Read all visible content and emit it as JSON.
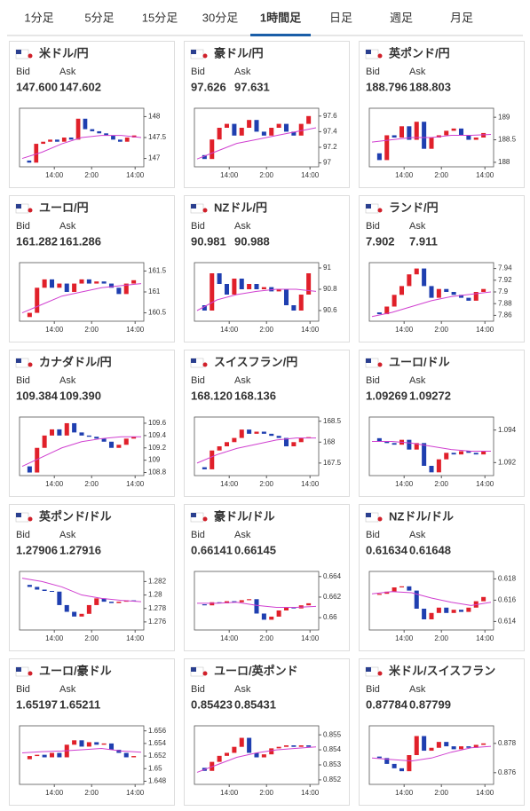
{
  "tabs": [
    "1分足",
    "5分足",
    "15分足",
    "30分足",
    "1時間足",
    "日足",
    "週足",
    "月足"
  ],
  "active_tab": 4,
  "bid_label": "Bid",
  "ask_label": "Ask",
  "time_labels": [
    "14:00",
    "2:00",
    "14:00"
  ],
  "cards": [
    {
      "title": "米ドル/円",
      "title_color": "#5a2a8a",
      "bid": "147.600",
      "ask": "147.602",
      "chart": {
        "ylim": [
          146.8,
          148.2
        ],
        "yticks": [
          147,
          147.5,
          148
        ],
        "close": [
          146.95,
          146.9,
          147.35,
          147.4,
          147.45,
          147.4,
          147.5,
          147.45,
          147.95,
          147.7,
          147.65,
          147.6,
          147.55,
          147.45,
          147.4,
          147.5,
          147.55
        ],
        "ma": [
          147.0,
          147.15,
          147.35,
          147.5,
          147.55,
          147.55,
          147.5
        ]
      }
    },
    {
      "title": "豪ドル/円",
      "title_color": "#5a2a8a",
      "bid": "97.626",
      "ask": "97.631",
      "chart": {
        "ylim": [
          96.95,
          97.7
        ],
        "yticks": [
          97,
          97.2,
          97.4,
          97.6
        ],
        "close": [
          97.1,
          97.05,
          97.3,
          97.45,
          97.5,
          97.35,
          97.45,
          97.55,
          97.4,
          97.35,
          97.45,
          97.5,
          97.4,
          97.35,
          97.5,
          97.6
        ],
        "ma": [
          97.05,
          97.15,
          97.25,
          97.3,
          97.35,
          97.4,
          97.45
        ]
      }
    },
    {
      "title": "英ポンド/円",
      "title_color": "#5a2a8a",
      "bid": "188.796",
      "ask": "188.803",
      "chart": {
        "ylim": [
          187.9,
          189.2
        ],
        "yticks": [
          188,
          188.5,
          189
        ],
        "close": [
          188.2,
          188.05,
          188.6,
          188.55,
          188.8,
          188.5,
          188.9,
          188.3,
          188.55,
          188.6,
          188.7,
          188.75,
          188.6,
          188.5,
          188.55,
          188.65
        ],
        "ma": [
          188.45,
          188.5,
          188.55,
          188.55,
          188.6,
          188.6,
          188.62
        ]
      }
    },
    {
      "title": "ユーロ/円",
      "title_color": "#5a2a8a",
      "bid": "161.282",
      "ask": "161.286",
      "chart": {
        "ylim": [
          160.3,
          161.7
        ],
        "yticks": [
          160.5,
          161,
          161.5
        ],
        "close": [
          160.4,
          160.5,
          161.1,
          161.3,
          161.1,
          161.2,
          161.0,
          161.2,
          161.3,
          161.2,
          161.25,
          161.2,
          161.1,
          160.95,
          161.2,
          161.28
        ],
        "ma": [
          160.5,
          160.7,
          160.9,
          161.0,
          161.1,
          161.15,
          161.2
        ]
      }
    },
    {
      "title": "NZドル/円",
      "title_color": "#5a2a8a",
      "bid": "90.981",
      "ask": "90.988",
      "chart": {
        "ylim": [
          90.5,
          91.05
        ],
        "yticks": [
          90.6,
          90.8,
          91
        ],
        "close": [
          90.65,
          90.6,
          90.95,
          90.85,
          90.75,
          90.9,
          90.8,
          90.85,
          90.8,
          90.82,
          90.78,
          90.8,
          90.65,
          90.6,
          90.75,
          90.95
        ],
        "ma": [
          90.6,
          90.7,
          90.75,
          90.78,
          90.8,
          90.8,
          90.78
        ]
      }
    },
    {
      "title": "ランド/円",
      "title_color": "#5a2a8a",
      "bid": "7.902",
      "ask": "7.911",
      "chart": {
        "ylim": [
          7.85,
          7.95
        ],
        "yticks": [
          7.86,
          7.88,
          7.9,
          7.92,
          7.94
        ],
        "close": [
          7.865,
          7.862,
          7.875,
          7.895,
          7.91,
          7.93,
          7.94,
          7.91,
          7.89,
          7.905,
          7.9,
          7.895,
          7.89,
          7.885,
          7.9,
          7.905
        ],
        "ma": [
          7.858,
          7.865,
          7.875,
          7.885,
          7.892,
          7.896,
          7.9
        ]
      }
    },
    {
      "title": "カナダドル/円",
      "title_color": "#5a2a8a",
      "bid": "109.384",
      "ask": "109.390",
      "chart": {
        "ylim": [
          108.75,
          109.7
        ],
        "yticks": [
          108.8,
          109,
          109.2,
          109.4,
          109.6
        ],
        "close": [
          108.9,
          108.8,
          109.2,
          109.4,
          109.5,
          109.4,
          109.6,
          109.45,
          109.4,
          109.38,
          109.35,
          109.3,
          109.2,
          109.25,
          109.35,
          109.38
        ],
        "ma": [
          108.9,
          109.05,
          109.2,
          109.3,
          109.35,
          109.38,
          109.38
        ]
      }
    },
    {
      "title": "スイスフラン/円",
      "title_color": "#1a5ea8",
      "bid": "168.120",
      "ask": "168.136",
      "chart": {
        "ylim": [
          167.2,
          168.6
        ],
        "yticks": [
          167.5,
          168,
          168.5
        ],
        "close": [
          167.4,
          167.35,
          167.8,
          167.9,
          168.0,
          168.1,
          168.3,
          168.2,
          168.25,
          168.2,
          168.15,
          168.1,
          167.9,
          168.0,
          168.1,
          168.12
        ],
        "ma": [
          167.5,
          167.7,
          167.85,
          167.95,
          168.05,
          168.1,
          168.1
        ]
      }
    },
    {
      "title": "ユーロ/ドル",
      "title_color": "#1a5ea8",
      "bid": "1.09269",
      "ask": "1.09272",
      "chart": {
        "ylim": [
          1.0912,
          1.0948
        ],
        "yticks": [
          1.092,
          1.094
        ],
        "close": [
          1.0935,
          1.0933,
          1.0932,
          1.0931,
          1.0934,
          1.0928,
          1.0932,
          1.0918,
          1.0914,
          1.0922,
          1.0926,
          1.0925,
          1.0927,
          1.0926,
          1.0925,
          1.0927
        ],
        "ma": [
          1.0933,
          1.0933,
          1.0932,
          1.093,
          1.0928,
          1.0927,
          1.0927
        ]
      }
    },
    {
      "title": "英ポンド/ドル",
      "title_color": "#5a2a8a",
      "bid": "1.27906",
      "ask": "1.27916",
      "chart": {
        "ylim": [
          1.2748,
          1.2835
        ],
        "yticks": [
          1.276,
          1.278,
          1.28,
          1.282
        ],
        "close": [
          1.2815,
          1.2812,
          1.2808,
          1.2806,
          1.2805,
          1.2785,
          1.2775,
          1.2768,
          1.2772,
          1.2785,
          1.2795,
          1.279,
          1.2788,
          1.279,
          1.2792,
          1.2791
        ],
        "ma": [
          1.2825,
          1.282,
          1.2812,
          1.28,
          1.2795,
          1.2792,
          1.279
        ]
      }
    },
    {
      "title": "豪ドル/ドル",
      "title_color": "#1a5ea8",
      "bid": "0.66141",
      "ask": "0.66145",
      "chart": {
        "ylim": [
          0.6588,
          0.6645
        ],
        "yticks": [
          0.66,
          0.662,
          0.664
        ],
        "close": [
          0.6613,
          0.6612,
          0.6615,
          0.6614,
          0.6616,
          0.6615,
          0.6617,
          0.6618,
          0.6604,
          0.6598,
          0.6601,
          0.6607,
          0.661,
          0.6609,
          0.6612,
          0.6614
        ],
        "ma": [
          0.6614,
          0.6614,
          0.6615,
          0.6612,
          0.661,
          0.661,
          0.6611
        ]
      }
    },
    {
      "title": "NZドル/ドル",
      "title_color": "#5a2a8a",
      "bid": "0.61634",
      "ask": "0.61648",
      "chart": {
        "ylim": [
          0.6132,
          0.6187
        ],
        "yticks": [
          0.614,
          0.616,
          0.618
        ],
        "close": [
          0.6165,
          0.6166,
          0.6168,
          0.6172,
          0.6173,
          0.6169,
          0.6152,
          0.6142,
          0.6148,
          0.6153,
          0.6148,
          0.6151,
          0.6149,
          0.6153,
          0.6159,
          0.6163
        ],
        "ma": [
          0.6166,
          0.6168,
          0.6167,
          0.6162,
          0.6158,
          0.6155,
          0.6158
        ]
      }
    },
    {
      "title": "ユーロ/豪ドル",
      "title_color": "#1a5ea8",
      "bid": "1.65197",
      "ask": "1.65211",
      "chart": {
        "ylim": [
          1.6475,
          1.6568
        ],
        "yticks": [
          1.648,
          1.65,
          1.652,
          1.654,
          1.656
        ],
        "close": [
          1.6515,
          1.652,
          1.6522,
          1.6518,
          1.6525,
          1.6518,
          1.6538,
          1.6545,
          1.6535,
          1.6542,
          1.6538,
          1.654,
          1.653,
          1.6525,
          1.6518,
          1.652
        ],
        "ma": [
          1.6525,
          1.6527,
          1.6528,
          1.653,
          1.6532,
          1.6528,
          1.6526
        ]
      }
    },
    {
      "title": "ユーロ/英ポンド",
      "title_color": "#1a5ea8",
      "bid": "0.85423",
      "ask": "0.85431",
      "chart": {
        "ylim": [
          0.8517,
          0.8556
        ],
        "yticks": [
          0.852,
          0.853,
          0.854,
          0.855
        ],
        "close": [
          0.8528,
          0.8526,
          0.8532,
          0.8536,
          0.8538,
          0.8542,
          0.8548,
          0.8538,
          0.8535,
          0.8537,
          0.8541,
          0.8542,
          0.8543,
          0.8542,
          0.8543,
          0.8542
        ],
        "ma": [
          0.8525,
          0.853,
          0.8535,
          0.8538,
          0.854,
          0.8541,
          0.8542
        ]
      }
    },
    {
      "title": "米ドル/スイスフラン",
      "title_color": "#1a5ea8",
      "bid": "0.87784",
      "ask": "0.87799",
      "chart": {
        "ylim": [
          0.8752,
          0.8792
        ],
        "yticks": [
          0.876,
          0.878
        ],
        "close": [
          0.8771,
          0.877,
          0.8766,
          0.8763,
          0.8761,
          0.8772,
          0.8785,
          0.8775,
          0.8777,
          0.8781,
          0.8778,
          0.8776,
          0.8778,
          0.8777,
          0.8779,
          0.878
        ],
        "ma": [
          0.877,
          0.8769,
          0.8768,
          0.877,
          0.8774,
          0.8777,
          0.8778
        ]
      }
    }
  ]
}
